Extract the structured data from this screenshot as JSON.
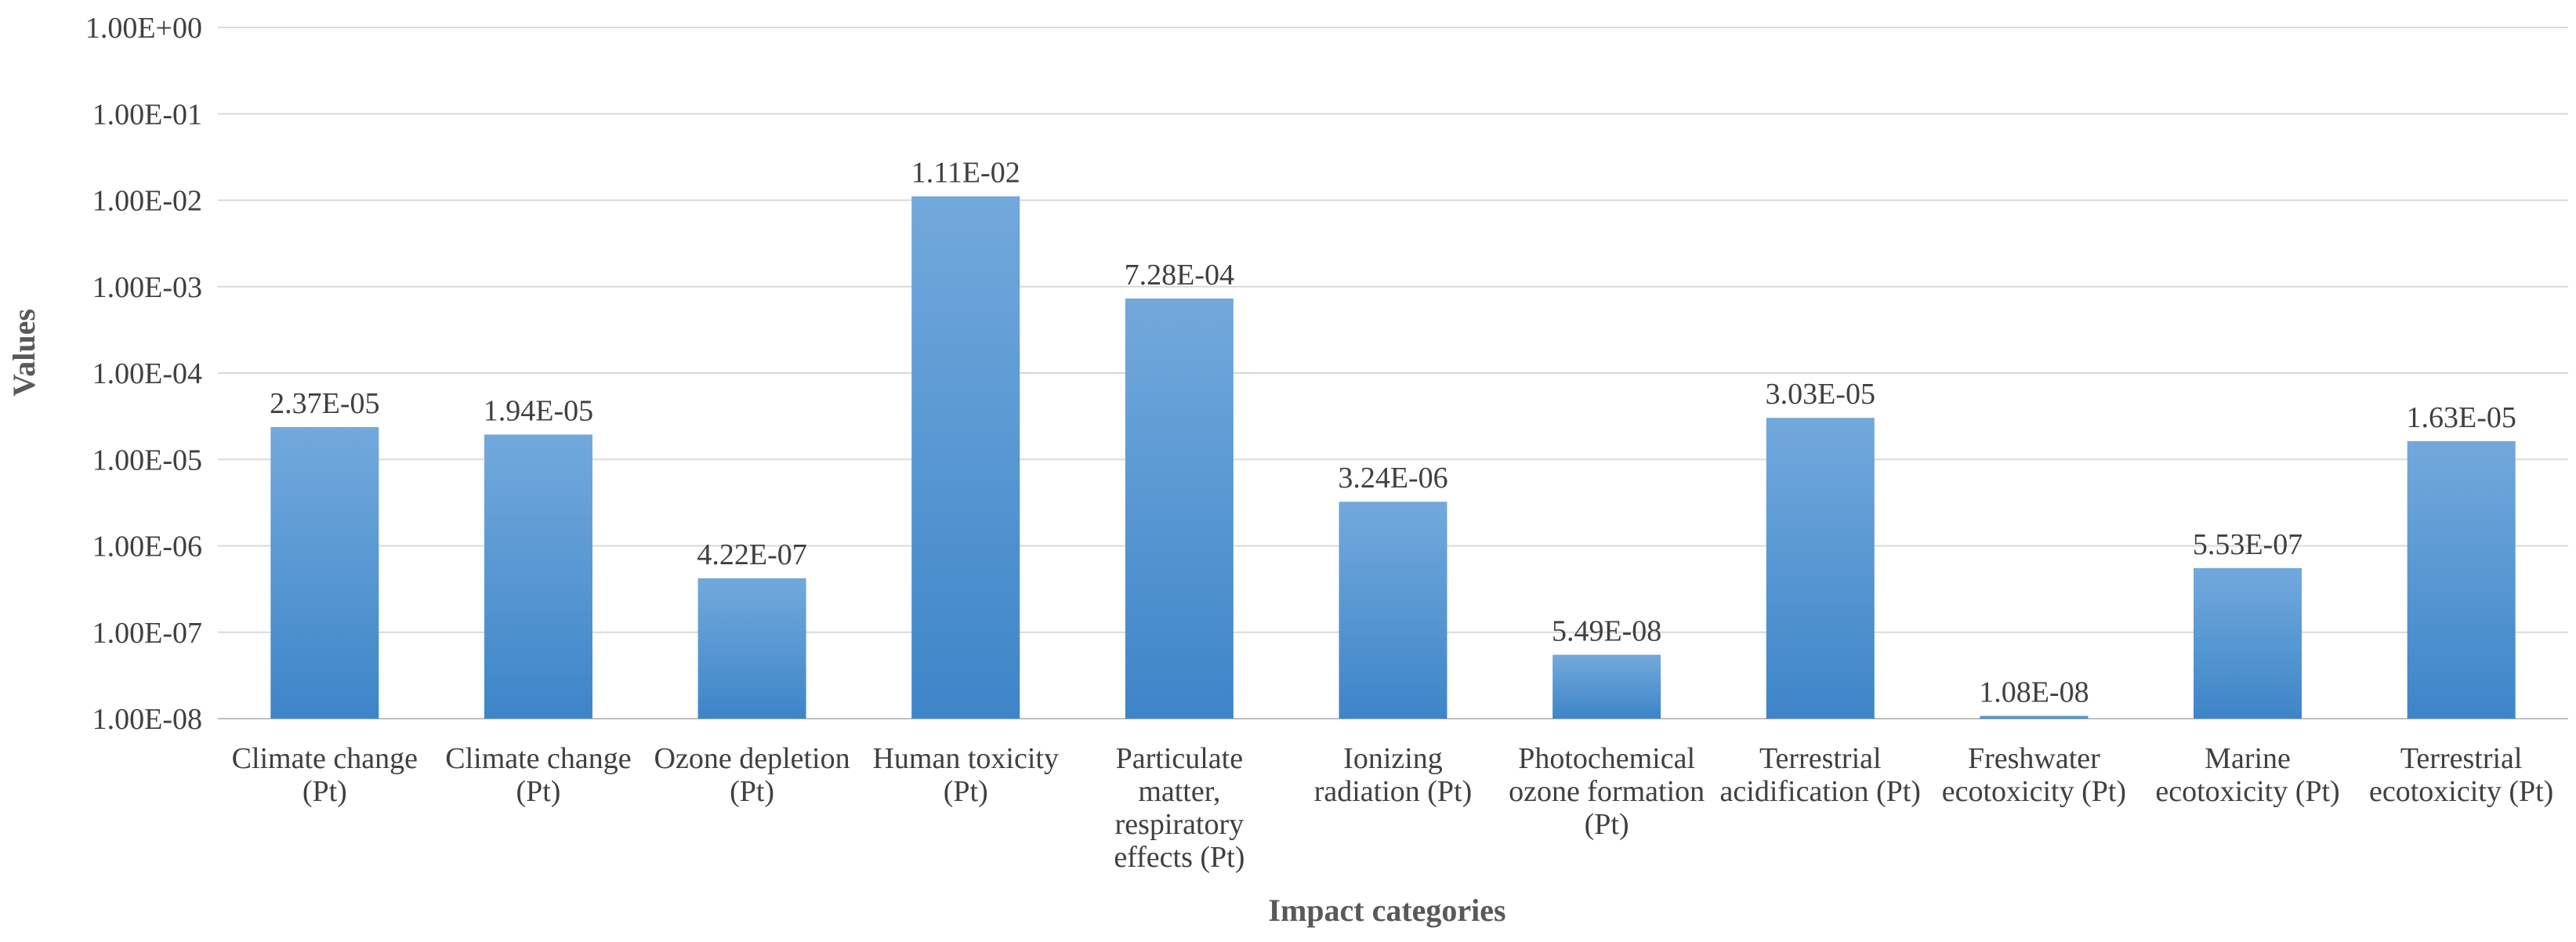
{
  "chart_data": {
    "type": "bar",
    "title": "",
    "xlabel": "Impact categories",
    "ylabel": "Values",
    "yscale": "log",
    "ylim": [
      1e-08,
      1
    ],
    "yticks": [
      "1.00E-08",
      "1.00E-07",
      "1.00E-06",
      "1.00E-05",
      "1.00E-04",
      "1.00E-03",
      "1.00E-02",
      "1.00E-01",
      "1.00E+00"
    ],
    "grid": true,
    "legend": "none",
    "bar_color": "#5b9bd5",
    "categories": [
      [
        "Climate change",
        "(Pt)"
      ],
      [
        "Climate change",
        "(Pt)"
      ],
      [
        "Ozone depletion",
        "(Pt)"
      ],
      [
        "Human toxicity",
        "(Pt)"
      ],
      [
        "Particulate",
        "matter,",
        "respiratory",
        "effects (Pt)"
      ],
      [
        "Ionizing",
        "radiation (Pt)"
      ],
      [
        "Photochemical",
        "ozone formation",
        "(Pt)"
      ],
      [
        "Terrestrial",
        "acidification (Pt)"
      ],
      [
        "Freshwater",
        "ecotoxicity (Pt)"
      ],
      [
        "Marine",
        "ecotoxicity (Pt)"
      ],
      [
        "Terrestrial",
        "ecotoxicity (Pt)"
      ]
    ],
    "values": [
      2.37e-05,
      1.94e-05,
      4.22e-07,
      0.0111,
      0.000728,
      3.24e-06,
      5.49e-08,
      3.03e-05,
      1.08e-08,
      5.53e-07,
      1.63e-05
    ],
    "data_labels": [
      "2.37E-05",
      "1.94E-05",
      "4.22E-07",
      "1.11E-02",
      "7.28E-04",
      "3.24E-06",
      "5.49E-08",
      "3.03E-05",
      "1.08E-08",
      "5.53E-07",
      "1.63E-05"
    ]
  }
}
